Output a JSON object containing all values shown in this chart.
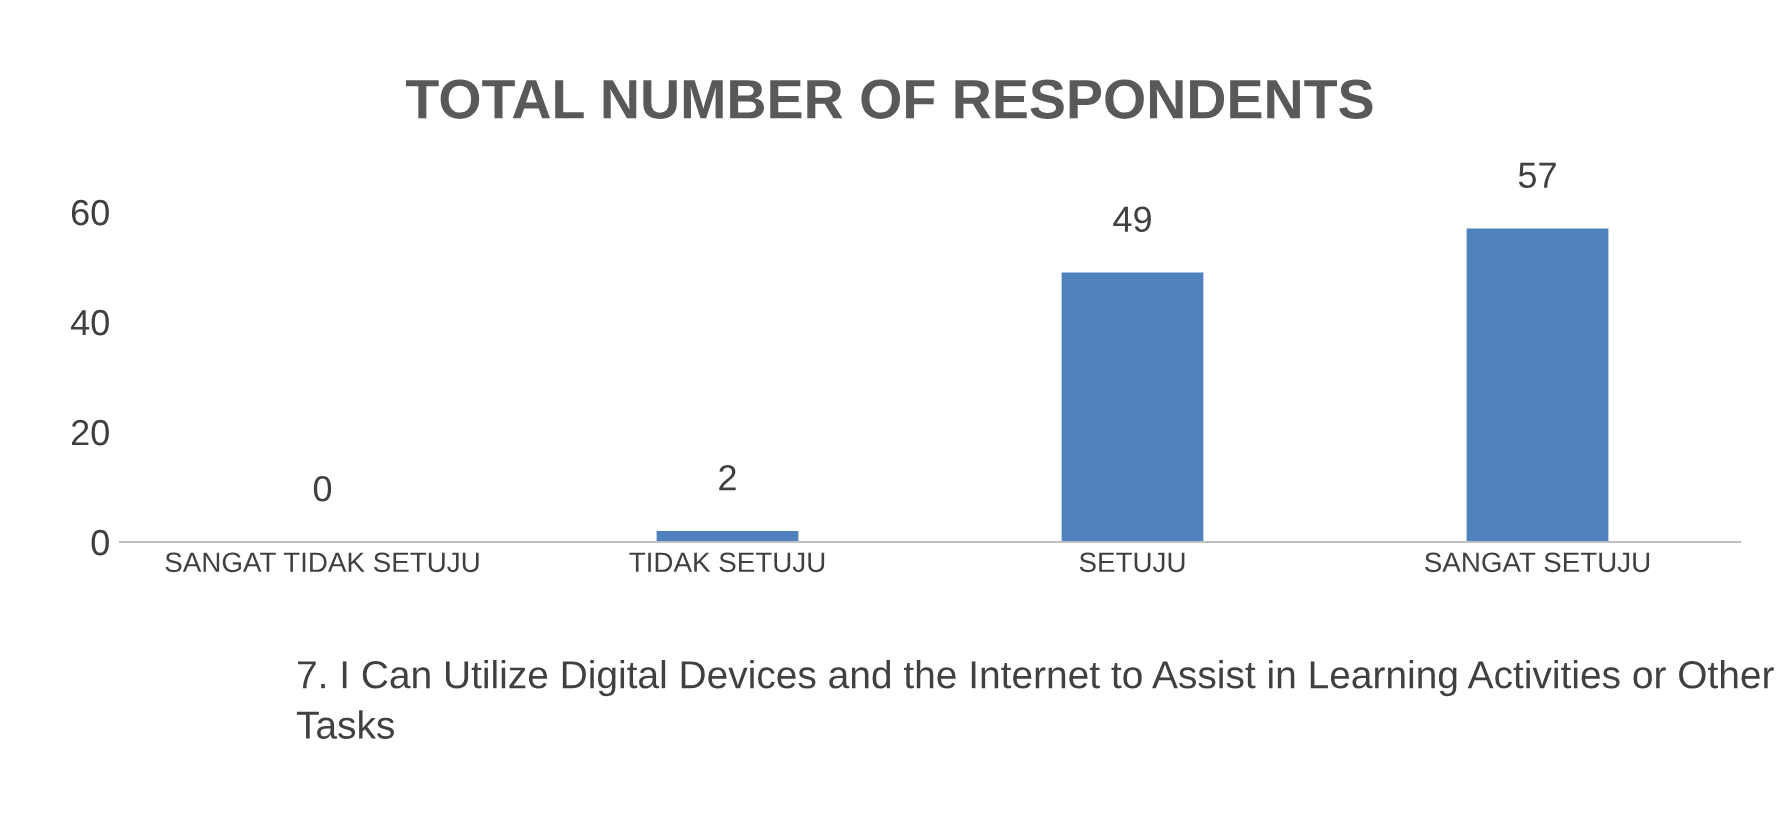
{
  "chart_data": {
    "type": "bar",
    "title": "TOTAL NUMBER OF RESPONDENTS",
    "categories": [
      "SANGAT TIDAK SETUJU",
      "TIDAK SETUJU",
      "SETUJU",
      "SANGAT SETUJU"
    ],
    "values": [
      0,
      2,
      49,
      57
    ],
    "color": "#4f81bd",
    "ylim": [
      0,
      60
    ],
    "yticks": [
      0,
      20,
      40,
      60
    ],
    "grid": false,
    "data_labels": true,
    "annotations": [
      "7. I Can Utilize Digital Devices and the Internet to Assist in Learning Activities or Other Tasks"
    ]
  }
}
